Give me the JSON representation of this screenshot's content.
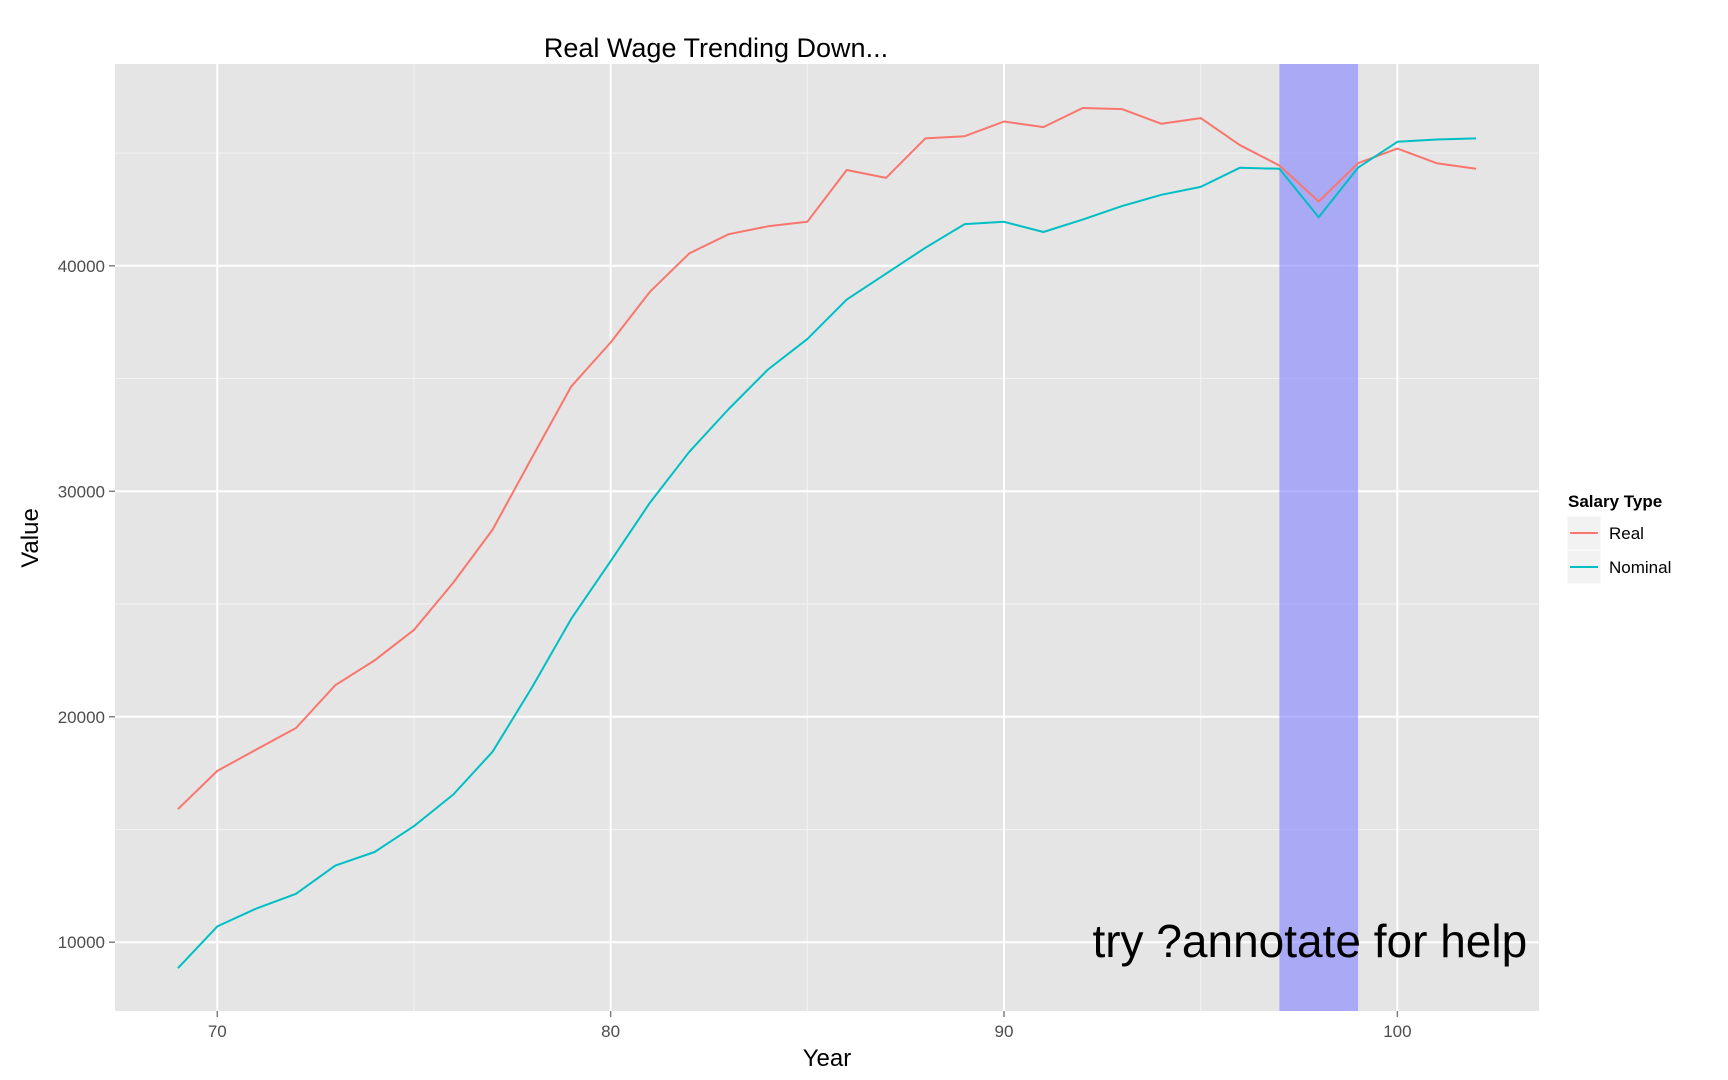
{
  "chart_data": {
    "type": "line",
    "title": "Real Wage Trending Down...",
    "xlabel": "Year",
    "ylabel": "Value",
    "xlim": [
      67.4,
      103.6
    ],
    "ylim": [
      6950,
      48950
    ],
    "x_ticks": [
      70,
      80,
      90,
      100
    ],
    "y_ticks": [
      10000,
      20000,
      30000,
      40000
    ],
    "grid": true,
    "legend": {
      "title": "Salary Type",
      "position": "right"
    },
    "annotation": {
      "text": "try ?annotate for help",
      "x": 103.3,
      "y": 10000,
      "anchor": "end"
    },
    "highlight": {
      "xmin": 97,
      "xmax": 99,
      "color": "#8080ff",
      "opacity": 0.6
    },
    "x": [
      69,
      70,
      71,
      72,
      73,
      74,
      75,
      76,
      77,
      78,
      79,
      80,
      81,
      82,
      83,
      84,
      85,
      86,
      87,
      88,
      89,
      90,
      91,
      92,
      93,
      94,
      95,
      96,
      97,
      98,
      99,
      100,
      101,
      102
    ],
    "series": [
      {
        "name": "Real",
        "color": "#f8766d",
        "values": [
          15900,
          17600,
          18550,
          19500,
          21400,
          22500,
          23850,
          25950,
          28300,
          31500,
          34650,
          36600,
          38850,
          40550,
          41400,
          41750,
          41950,
          44250,
          43900,
          45650,
          45750,
          46400,
          46150,
          47000,
          46950,
          46300,
          46550,
          45350,
          44450,
          42850,
          44550,
          45200,
          44550,
          44300
        ]
      },
      {
        "name": "Nominal",
        "color": "#00bfc4",
        "values": [
          8850,
          10700,
          11500,
          12150,
          13400,
          14000,
          15150,
          16550,
          18450,
          21300,
          24350,
          26900,
          29500,
          31750,
          33650,
          35400,
          36750,
          38500,
          39650,
          40800,
          41850,
          41950,
          41500,
          42050,
          42650,
          43150,
          43500,
          44350,
          44300,
          42150,
          44350,
          45500,
          45600,
          45650
        ]
      }
    ]
  }
}
